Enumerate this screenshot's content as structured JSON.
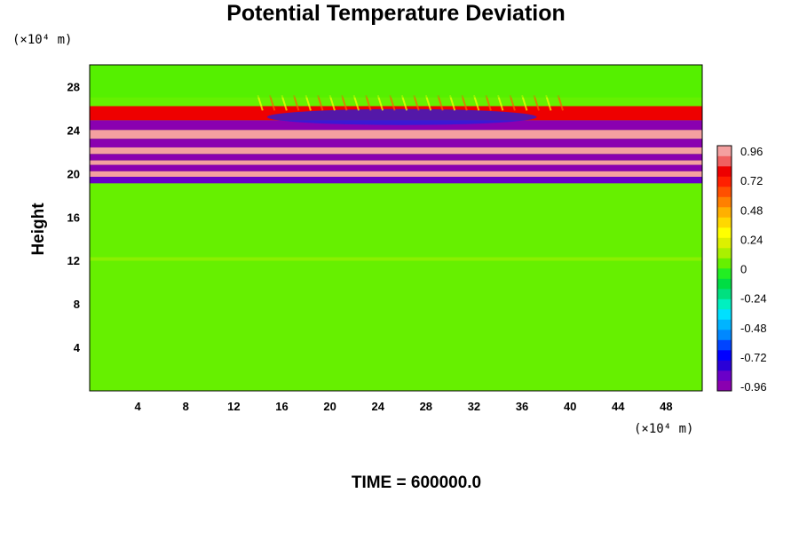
{
  "chart_data": {
    "type": "heatmap",
    "title": "Potential Temperature Deviation",
    "xlabel": "",
    "ylabel": "Height",
    "x_unit_label": "(×10⁴ m)",
    "y_unit_label": "(×10⁴ m)",
    "x_ticks": [
      4,
      8,
      12,
      16,
      20,
      24,
      28,
      32,
      36,
      40,
      44,
      48
    ],
    "y_ticks": [
      4,
      8,
      12,
      16,
      20,
      24,
      28
    ],
    "xlim": [
      0,
      51
    ],
    "ylim": [
      0,
      30
    ],
    "colorbar": {
      "ticks": [
        "0.96",
        "0.72",
        "0.48",
        "0.24",
        "0",
        "-0.24",
        "-0.48",
        "-0.72",
        "-0.96"
      ],
      "range": [
        -0.96,
        0.96
      ]
    },
    "bands": [
      {
        "y_range": [
          24.9,
          26.2
        ],
        "value": 0.75
      },
      {
        "y_range": [
          24.0,
          24.9
        ],
        "value": -0.9
      },
      {
        "y_range": [
          23.2,
          24.0
        ],
        "value": 0.96
      },
      {
        "y_range": [
          22.4,
          23.2
        ],
        "value": -0.96
      },
      {
        "y_range": [
          21.8,
          22.4
        ],
        "value": 0.96
      },
      {
        "y_range": [
          21.2,
          21.8
        ],
        "value": -0.96
      },
      {
        "y_range": [
          20.8,
          21.2
        ],
        "value": 0.96
      },
      {
        "y_range": [
          20.2,
          20.8
        ],
        "value": -0.96
      },
      {
        "y_range": [
          19.7,
          20.2
        ],
        "value": 0.9
      },
      {
        "y_range": [
          19.1,
          19.7
        ],
        "value": -0.8
      }
    ],
    "background_value": 0.02
  },
  "footer": {
    "time_label": "TIME = 600000.0"
  },
  "colors": {
    "background_field": "#22ee22",
    "frame": "#000000"
  }
}
